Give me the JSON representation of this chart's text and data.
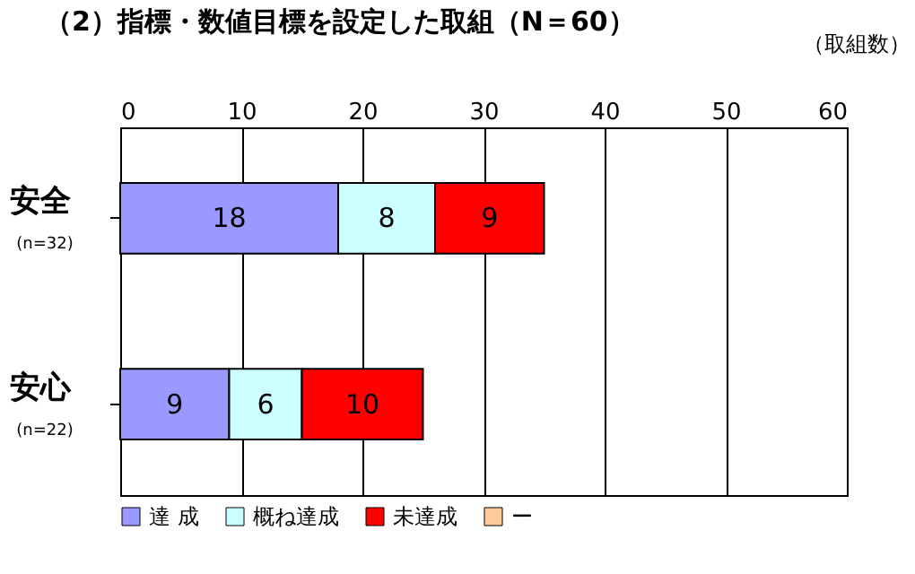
{
  "chart_data": {
    "type": "bar",
    "orientation": "horizontal",
    "stacked": true,
    "title": "（2）指標・数値目標を設定した取組（N＝60）",
    "xlabel": "（取組数）",
    "categories": [
      "安全",
      "安心"
    ],
    "annotations": [
      "(n=32)",
      "(n=22)"
    ],
    "series": [
      {
        "name": "達 成",
        "color": "#9999ff",
        "values": [
          18,
          9
        ]
      },
      {
        "name": "概ね達成",
        "color": "#ccffff",
        "values": [
          8,
          6
        ]
      },
      {
        "name": "未達成",
        "color": "#ff0000",
        "values": [
          9,
          10
        ]
      },
      {
        "name": "ー",
        "color": "#ffcc99",
        "values": [
          null,
          null
        ]
      }
    ],
    "xlim": [
      0,
      60
    ],
    "xticks": [
      0,
      10,
      20,
      30,
      40,
      50,
      60
    ],
    "grid": "x",
    "legend": "bottom",
    "data_labels": true
  }
}
